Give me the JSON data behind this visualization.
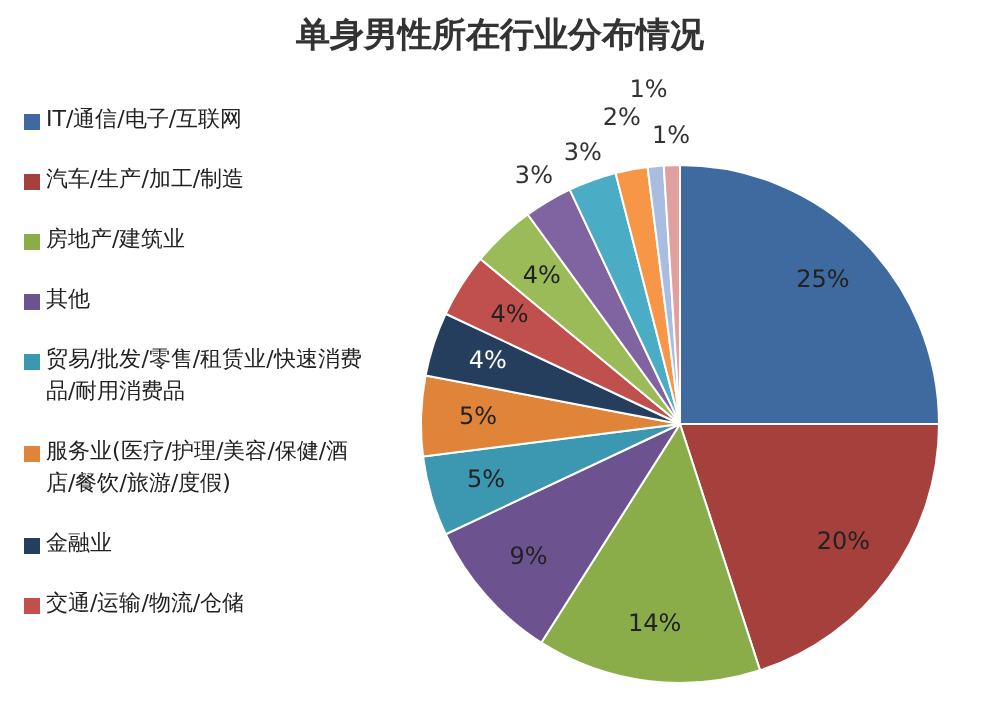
{
  "chart_data": {
    "type": "pie",
    "title": "单身男性所在行业分布情况",
    "categories": [
      "IT/通信/电子/互联网",
      "汽车/生产/加工/制造",
      "房地产/建筑业",
      "其他",
      "贸易/批发/零售/租赁业/快速消费品/耐用消费品",
      "服务业(医疗/护理/美容/保健/酒店/餐饮/旅游/度假)",
      "金融业",
      "交通/运输/物流/仓储",
      null,
      null,
      null,
      null,
      null,
      null
    ],
    "values": [
      25,
      20,
      14,
      9,
      5,
      5,
      4,
      4,
      4,
      3,
      3,
      2,
      1,
      1
    ],
    "value_labels": [
      "25%",
      "20%",
      "14%",
      "9%",
      "5%",
      "5%",
      "4%",
      "4%",
      "4%",
      "3%",
      "3%",
      "2%",
      "1%",
      "1%"
    ],
    "colors": [
      "#3e6aa0",
      "#a5403d",
      "#8aad4a",
      "#6c5390",
      "#3c97b0",
      "#e0843a",
      "#263e5e",
      "#c0504d",
      "#9bbb59",
      "#8064a2",
      "#4bacc6",
      "#f79646",
      "#a9bde0",
      "#e0a0a0"
    ],
    "legend": "left"
  }
}
